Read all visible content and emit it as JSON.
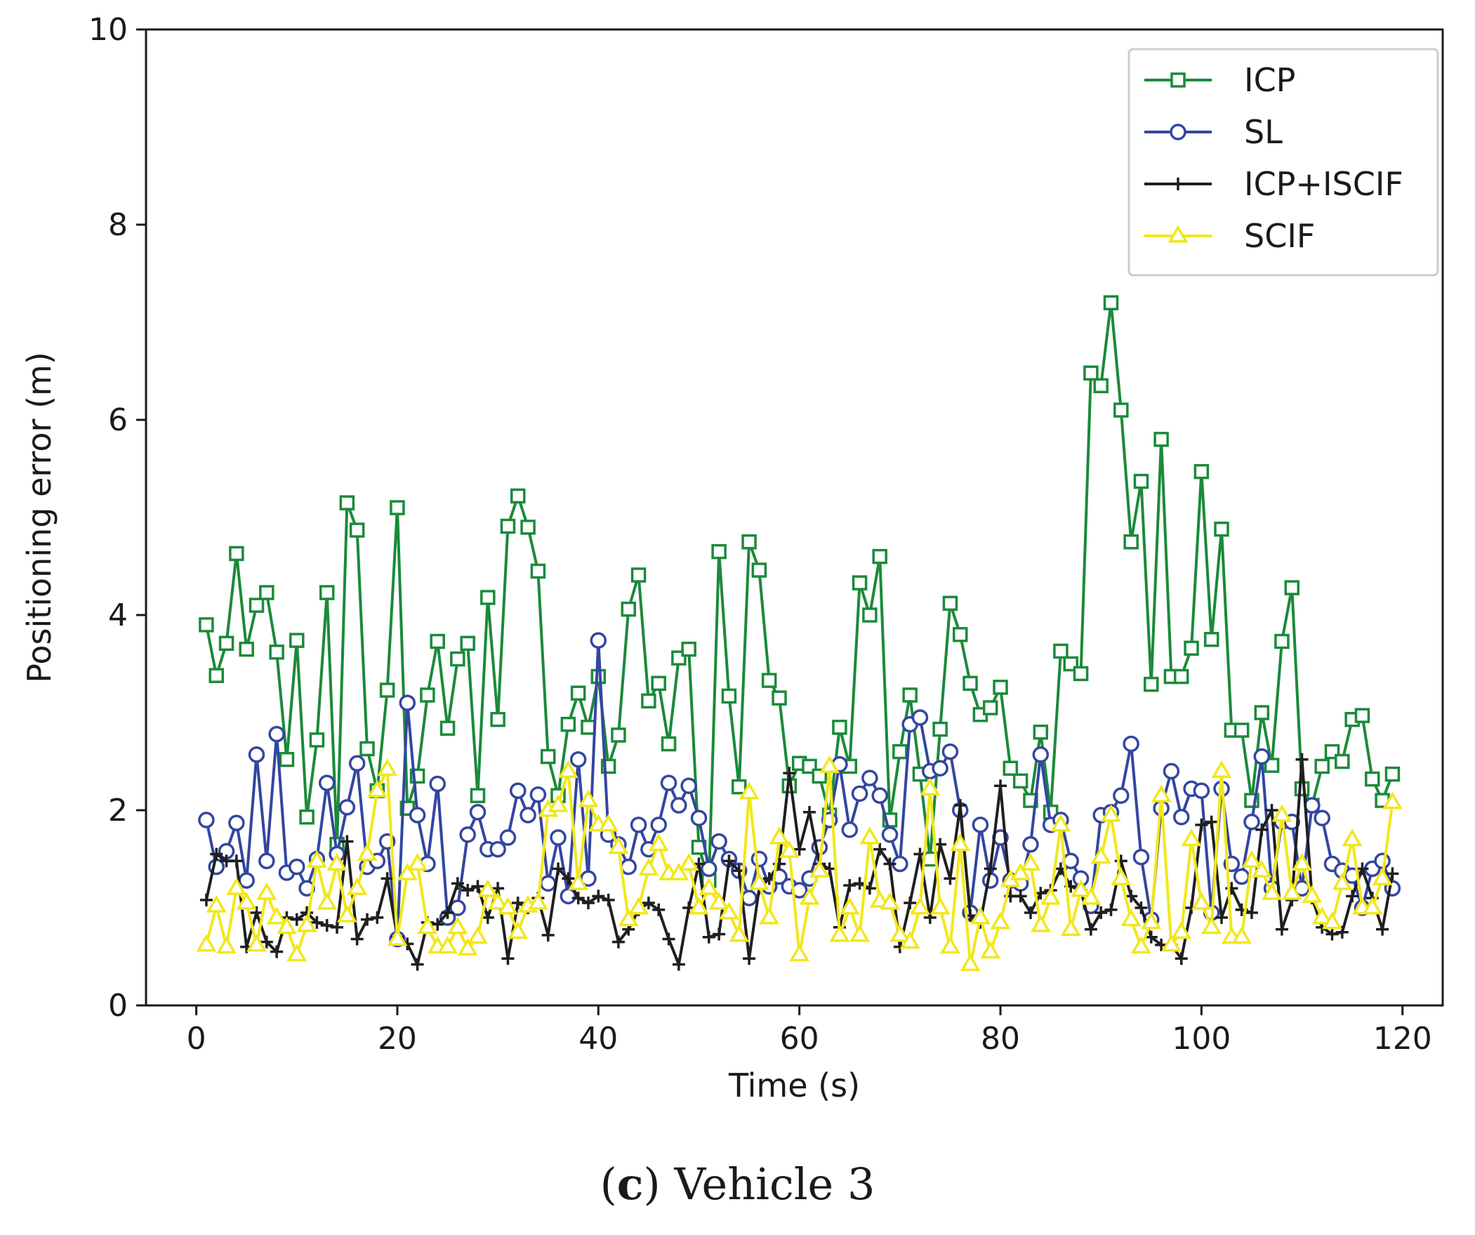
{
  "chart_data": {
    "type": "line",
    "title": "",
    "xlabel": "Time (s)",
    "ylabel": "Positioning error (m)",
    "xlim": [
      -5,
      124
    ],
    "ylim": [
      0,
      10
    ],
    "xticks": [
      0,
      20,
      40,
      60,
      80,
      100,
      120
    ],
    "yticks": [
      0,
      2,
      4,
      6,
      8,
      10
    ],
    "legend_position": "top-right",
    "x": [
      1,
      2,
      3,
      4,
      5,
      6,
      7,
      8,
      9,
      10,
      11,
      12,
      13,
      14,
      15,
      16,
      17,
      18,
      19,
      20,
      21,
      22,
      23,
      24,
      25,
      26,
      27,
      28,
      29,
      30,
      31,
      32,
      33,
      34,
      35,
      36,
      37,
      38,
      39,
      40,
      41,
      42,
      43,
      44,
      45,
      46,
      47,
      48,
      49,
      50,
      51,
      52,
      53,
      54,
      55,
      56,
      57,
      58,
      59,
      60,
      61,
      62,
      63,
      64,
      65,
      66,
      67,
      68,
      69,
      70,
      71,
      72,
      73,
      74,
      75,
      76,
      77,
      78,
      79,
      80,
      81,
      82,
      83,
      84,
      85,
      86,
      87,
      88,
      89,
      90,
      91,
      92,
      93,
      94,
      95,
      96,
      97,
      98,
      99,
      100,
      101,
      102,
      103,
      104,
      105,
      106,
      107,
      108,
      109,
      110,
      111,
      112,
      113,
      114,
      115,
      116,
      117,
      118,
      119
    ],
    "series": [
      {
        "name": "ICP",
        "color": "#1b8a3a",
        "marker": "square",
        "values": [
          3.9,
          3.38,
          3.71,
          4.63,
          3.65,
          4.1,
          4.23,
          3.62,
          2.52,
          3.74,
          1.93,
          2.72,
          4.23,
          1.65,
          5.15,
          4.87,
          2.63,
          2.2,
          3.23,
          5.1,
          2.02,
          2.35,
          3.18,
          3.73,
          2.84,
          3.55,
          3.71,
          2.15,
          4.18,
          2.93,
          4.91,
          5.22,
          4.9,
          4.45,
          2.55,
          2.15,
          2.88,
          3.2,
          2.85,
          3.37,
          2.45,
          2.77,
          4.06,
          4.41,
          3.12,
          3.3,
          2.68,
          3.56,
          3.65,
          1.62,
          1.28,
          4.65,
          3.17,
          2.24,
          4.75,
          4.46,
          3.33,
          3.15,
          2.25,
          2.48,
          2.45,
          2.35,
          1.95,
          2.85,
          2.45,
          4.33,
          4.0,
          4.6,
          1.9,
          2.6,
          3.18,
          2.37,
          1.5,
          2.83,
          4.12,
          3.8,
          3.3,
          2.98,
          3.05,
          3.26,
          2.43,
          2.3,
          2.1,
          2.8,
          1.98,
          3.63,
          3.5,
          3.4,
          6.48,
          6.35,
          7.2,
          6.1,
          4.75,
          5.37,
          3.29,
          5.8,
          3.37,
          3.37,
          3.66,
          5.47,
          3.75,
          4.88,
          2.82,
          2.82,
          2.1,
          3.0,
          2.46,
          3.73,
          4.28,
          2.22,
          2.05,
          2.45,
          2.6,
          2.5,
          2.93,
          2.97,
          2.32,
          2.1,
          2.37
        ]
      },
      {
        "name": "SL",
        "color": "#3346a0",
        "marker": "circle",
        "values": [
          1.9,
          1.42,
          1.58,
          1.87,
          1.28,
          2.57,
          1.48,
          2.78,
          1.36,
          1.42,
          1.2,
          1.5,
          2.28,
          1.55,
          2.03,
          2.48,
          1.42,
          1.48,
          1.68,
          0.68,
          3.1,
          1.95,
          1.45,
          2.27,
          0.9,
          1.0,
          1.75,
          1.98,
          1.6,
          1.6,
          1.72,
          2.2,
          1.95,
          2.16,
          1.25,
          1.72,
          1.12,
          2.52,
          1.3,
          3.74,
          1.75,
          1.65,
          1.42,
          1.85,
          1.6,
          1.85,
          2.28,
          2.05,
          2.25,
          1.92,
          1.4,
          1.68,
          1.5,
          1.38,
          1.1,
          1.5,
          1.22,
          1.32,
          1.22,
          1.18,
          1.3,
          1.62,
          1.9,
          2.47,
          1.8,
          2.17,
          2.33,
          2.15,
          1.75,
          1.45,
          2.88,
          2.95,
          2.4,
          2.43,
          2.6,
          2.0,
          0.95,
          1.85,
          1.28,
          1.72,
          1.28,
          1.25,
          1.65,
          2.57,
          1.85,
          1.9,
          1.48,
          1.3,
          1.02,
          1.95,
          1.98,
          2.15,
          2.68,
          1.52,
          0.88,
          2.02,
          2.4,
          1.93,
          2.22,
          2.2,
          0.95,
          2.22,
          1.45,
          1.32,
          1.88,
          2.55,
          1.2,
          1.88,
          1.88,
          1.2,
          2.05,
          1.92,
          1.45,
          1.38,
          1.33,
          1.0,
          1.4,
          1.48,
          1.2
        ]
      },
      {
        "name": "ICP+ISCIF",
        "color": "#1f1f1f",
        "marker": "plus",
        "values": [
          1.08,
          1.55,
          1.48,
          1.48,
          0.6,
          0.95,
          0.65,
          0.55,
          0.9,
          0.88,
          0.95,
          0.85,
          0.82,
          0.8,
          1.68,
          0.68,
          0.88,
          0.9,
          1.3,
          0.7,
          0.63,
          0.42,
          0.85,
          0.83,
          0.95,
          1.25,
          1.18,
          1.22,
          0.9,
          1.2,
          0.48,
          1.05,
          1.0,
          1.1,
          0.72,
          1.4,
          1.3,
          1.1,
          1.05,
          1.12,
          1.08,
          0.65,
          0.78,
          0.98,
          1.05,
          0.98,
          0.68,
          0.42,
          1.0,
          1.45,
          0.7,
          0.73,
          1.48,
          1.38,
          0.48,
          1.2,
          1.3,
          1.45,
          2.38,
          1.6,
          1.98,
          1.45,
          1.4,
          0.8,
          1.23,
          1.25,
          1.2,
          1.6,
          1.45,
          0.6,
          1.05,
          1.55,
          0.9,
          1.65,
          1.3,
          2.05,
          0.92,
          0.85,
          1.4,
          2.25,
          1.12,
          1.12,
          0.95,
          1.15,
          1.18,
          1.4,
          1.22,
          1.18,
          0.78,
          0.95,
          0.98,
          1.48,
          1.12,
          1.0,
          0.7,
          0.62,
          0.62,
          0.48,
          1.0,
          1.85,
          1.88,
          0.9,
          1.2,
          0.98,
          0.95,
          1.8,
          2.0,
          0.78,
          1.08,
          2.52,
          1.1,
          0.8,
          0.73,
          0.75,
          1.12,
          1.4,
          1.1,
          0.78,
          1.35
        ]
      },
      {
        "name": "SCIF",
        "color": "#f2e71b",
        "marker": "triangle",
        "values": [
          0.62,
          1.02,
          0.6,
          1.2,
          1.05,
          0.62,
          1.15,
          0.9,
          0.8,
          0.52,
          0.82,
          1.48,
          1.05,
          1.45,
          0.92,
          1.2,
          1.55,
          2.2,
          2.42,
          0.68,
          1.35,
          1.45,
          0.8,
          0.6,
          0.6,
          0.8,
          0.58,
          0.7,
          1.18,
          1.05,
          1.0,
          0.75,
          1.02,
          1.05,
          2.0,
          2.05,
          2.4,
          1.25,
          2.1,
          1.85,
          1.85,
          1.62,
          0.88,
          1.0,
          1.4,
          1.65,
          1.35,
          1.35,
          1.45,
          1.0,
          1.2,
          1.05,
          0.95,
          0.72,
          2.18,
          1.25,
          0.9,
          1.72,
          1.58,
          0.52,
          1.1,
          1.38,
          2.45,
          0.72,
          1.0,
          0.72,
          1.72,
          1.07,
          1.05,
          0.72,
          0.65,
          1.0,
          2.22,
          1.0,
          0.6,
          1.65,
          0.42,
          0.9,
          0.55,
          0.85,
          1.28,
          1.35,
          1.45,
          0.82,
          1.1,
          1.85,
          0.78,
          1.18,
          1.1,
          1.52,
          1.95,
          1.3,
          0.88,
          0.6,
          0.85,
          2.15,
          0.62,
          0.75,
          1.7,
          1.05,
          0.8,
          2.4,
          0.7,
          0.7,
          1.48,
          1.38,
          1.15,
          1.95,
          1.15,
          1.45,
          1.12,
          0.9,
          0.85,
          1.25,
          1.7,
          1.0,
          1.0,
          1.3,
          2.08
        ]
      }
    ],
    "caption_letter": "(c)",
    "caption_text": "Vehicle 3"
  }
}
